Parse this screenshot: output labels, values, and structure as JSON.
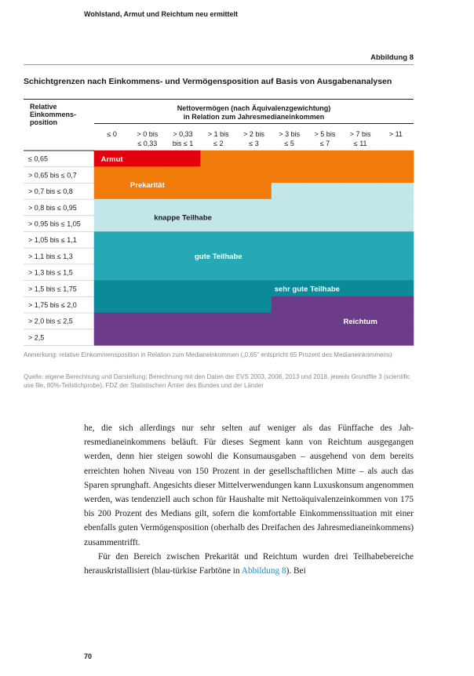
{
  "page": {
    "running_header": "Wohlstand, Armut und Reichtum neu ermittelt",
    "figure_label": "Abbildung 8",
    "figure_title": "Schichtgrenzen nach Einkommens- und Vermögensposition auf Basis von Ausgabenanalysen",
    "page_number": "70"
  },
  "colors": {
    "armut": "#e3000f",
    "prekaritaet": "#f07b0b",
    "knappe_teilhabe": "#c3e6ea",
    "gute_teilhabe": "#27a9b5",
    "sehr_gute_teilhabe": "#0b8a97",
    "reichtum": "#6c3b8a",
    "row_divider": "#cfcfcf",
    "rule": "#222222"
  },
  "chart_data": {
    "type": "heatmap",
    "title": "Schichtgrenzen nach Einkommens- und Vermögensposition auf Basis von Ausgabenanalysen",
    "row_axis_title": "Relative Einkommens-position",
    "col_axis_title_line1": "Nettovermögen (nach Äquivalenzgewichtung)",
    "col_axis_title_line2": "in Relation zum Jahresmedianeinkommen",
    "columns": [
      {
        "line1": "≤ 0",
        "line2": ""
      },
      {
        "line1": "> 0 bis",
        "line2": "≤ 0,33"
      },
      {
        "line1": "> 0,33",
        "line2": "bis ≤ 1"
      },
      {
        "line1": "> 1 bis",
        "line2": "≤ 2"
      },
      {
        "line1": "> 2 bis",
        "line2": "≤ 3"
      },
      {
        "line1": "> 3 bis",
        "line2": "≤ 5"
      },
      {
        "line1": "> 5 bis",
        "line2": "≤ 7"
      },
      {
        "line1": "> 7 bis",
        "line2": "≤ 11"
      },
      {
        "line1": "> 11",
        "line2": ""
      }
    ],
    "rows": [
      "≤ 0,65",
      "> 0,65 bis ≤ 0,7",
      "> 0,7 bis ≤ 0,8",
      "> 0,8 bis ≤ 0,95",
      "> 0,95 bis ≤ 1,05",
      "> 1,05 bis ≤ 1,1",
      "> 1,1 bis ≤ 1,3",
      "> 1,3 bis ≤ 1,5",
      "> 1,5 bis ≤ 1,75",
      "> 1,75 bis ≤ 2,0",
      "> 2,0 bis ≤ 2,5",
      "> 2,5"
    ],
    "zones": [
      {
        "id": "armut",
        "label": "Armut",
        "color": "#e3000f",
        "text_color": "#ffffff",
        "label_row": 0,
        "label_col": 0.5
      },
      {
        "id": "prekaritaet",
        "label": "Prekarität",
        "color": "#f07b0b",
        "text_color": "#ffffff",
        "label_row": 1.6,
        "label_col": 1.5
      },
      {
        "id": "knappe_teilhabe",
        "label": "knappe Teilhabe",
        "color": "#c3e6ea",
        "text_color": "#1a1a1a",
        "label_row": 3.6,
        "label_col": 2.5
      },
      {
        "id": "gute_teilhabe",
        "label": "gute Teilhabe",
        "color": "#27a9b5",
        "text_color": "#ffffff",
        "label_row": 6.0,
        "label_col": 3.5
      },
      {
        "id": "sehr_gute_teilhabe",
        "label": "sehr gute Teilhabe",
        "color": "#0b8a97",
        "text_color": "#ffffff",
        "label_row": 8.0,
        "label_col": 6.0
      },
      {
        "id": "reichtum",
        "label": "Reichtum",
        "color": "#6c3b8a",
        "text_color": "#ffffff",
        "label_row": 10.0,
        "label_col": 7.5
      }
    ],
    "cells": [
      [
        "armut",
        "armut",
        "armut",
        "prekaritaet",
        "prekaritaet",
        "prekaritaet",
        "prekaritaet",
        "prekaritaet",
        "prekaritaet"
      ],
      [
        "prekaritaet",
        "prekaritaet",
        "prekaritaet",
        "prekaritaet",
        "prekaritaet",
        "prekaritaet",
        "prekaritaet",
        "prekaritaet",
        "prekaritaet"
      ],
      [
        "prekaritaet",
        "prekaritaet",
        "prekaritaet",
        "prekaritaet",
        "prekaritaet",
        "knappe_teilhabe",
        "knappe_teilhabe",
        "knappe_teilhabe",
        "knappe_teilhabe"
      ],
      [
        "knappe_teilhabe",
        "knappe_teilhabe",
        "knappe_teilhabe",
        "knappe_teilhabe",
        "knappe_teilhabe",
        "knappe_teilhabe",
        "knappe_teilhabe",
        "knappe_teilhabe",
        "knappe_teilhabe"
      ],
      [
        "knappe_teilhabe",
        "knappe_teilhabe",
        "knappe_teilhabe",
        "knappe_teilhabe",
        "knappe_teilhabe",
        "knappe_teilhabe",
        "knappe_teilhabe",
        "knappe_teilhabe",
        "knappe_teilhabe"
      ],
      [
        "gute_teilhabe",
        "gute_teilhabe",
        "gute_teilhabe",
        "gute_teilhabe",
        "gute_teilhabe",
        "gute_teilhabe",
        "gute_teilhabe",
        "gute_teilhabe",
        "gute_teilhabe"
      ],
      [
        "gute_teilhabe",
        "gute_teilhabe",
        "gute_teilhabe",
        "gute_teilhabe",
        "gute_teilhabe",
        "gute_teilhabe",
        "gute_teilhabe",
        "gute_teilhabe",
        "gute_teilhabe"
      ],
      [
        "gute_teilhabe",
        "gute_teilhabe",
        "gute_teilhabe",
        "gute_teilhabe",
        "gute_teilhabe",
        "gute_teilhabe",
        "gute_teilhabe",
        "gute_teilhabe",
        "gute_teilhabe"
      ],
      [
        "sehr_gute_teilhabe",
        "sehr_gute_teilhabe",
        "sehr_gute_teilhabe",
        "sehr_gute_teilhabe",
        "sehr_gute_teilhabe",
        "sehr_gute_teilhabe",
        "sehr_gute_teilhabe",
        "sehr_gute_teilhabe",
        "sehr_gute_teilhabe"
      ],
      [
        "sehr_gute_teilhabe",
        "sehr_gute_teilhabe",
        "sehr_gute_teilhabe",
        "sehr_gute_teilhabe",
        "sehr_gute_teilhabe",
        "reichtum",
        "reichtum",
        "reichtum",
        "reichtum"
      ],
      [
        "reichtum",
        "reichtum",
        "reichtum",
        "reichtum",
        "reichtum",
        "reichtum",
        "reichtum",
        "reichtum",
        "reichtum"
      ],
      [
        "reichtum",
        "reichtum",
        "reichtum",
        "reichtum",
        "reichtum",
        "reichtum",
        "reichtum",
        "reichtum",
        "reichtum"
      ]
    ]
  },
  "notes": {
    "annotation": "Anmerkung: relative Einkommensposition in Relation zum Medianeinkommen („0,65“ entspricht 65 Prozent des Median­einkommens)",
    "source": "Quelle: eigene Berechnung und Darstellung; Berechnung mit den Daten der EVS 2003, 2008, 2013 und 2018, jeweils Grundfile 3 (scientific use file, 80%-Teilstichprobe), FDZ der Statistischen Ämter des Bundes und der Länder"
  },
  "body": {
    "para1": "he, die sich allerdings nur sehr selten auf weniger als das Fünffache des Jah­resmedianeinkommens beläuft. Für dieses Segment kann von Reichtum aus­gegangen werden, denn hier steigen sowohl die Konsumausgaben – ausgehend von dem bereits erreichten hohen Niveau von 150 Prozent in der gesellschaft­lichen Mitte – als auch das Sparen sprunghaft. Angesichts dieser Mittelver­wendungen kann Luxuskonsum angenommen werden, was tendenziell auch schon für Haushalte mit Nettoäquivalenzeinkommen von 175 bis 200 Pro­zent des Medians gilt, sofern die komfortable Einkommenssituation mit ei­ner ebenfalls guten Vermögensposition (oberhalb des Dreifachen des Jahres­medianeinkommens) zusammentrifft.",
    "para2_before": "Für den Bereich zwischen Prekarität und Reichtum wurden drei Teil­habebereiche herauskristallisiert (blau-türkise Farbtöne in ",
    "para2_link": "Abbildung 8",
    "para2_after": "). Bei"
  }
}
